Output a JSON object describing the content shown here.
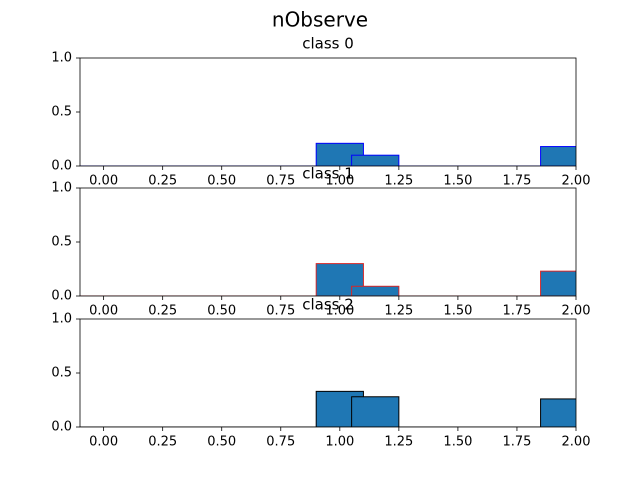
{
  "title": "nObserve",
  "chart_data": [
    {
      "type": "bar",
      "title": "class 0",
      "x": [
        0.9,
        1.05,
        1.85
      ],
      "width": 0.2,
      "values": [
        0.21,
        0.1,
        0.18
      ],
      "color": "#1f77b4",
      "edgecolor": "#0000ff",
      "xlim": [
        -0.1,
        2.0
      ],
      "ylim": [
        0,
        1
      ],
      "xticks": [
        {
          "value": 0,
          "label": "0.00"
        },
        {
          "value": 0.25,
          "label": "0.25"
        },
        {
          "value": 0.5,
          "label": "0.50"
        },
        {
          "value": 0.75,
          "label": "0.75"
        },
        {
          "value": 1,
          "label": "1.00"
        },
        {
          "value": 1.25,
          "label": "1.25"
        },
        {
          "value": 1.5,
          "label": "1.50"
        },
        {
          "value": 1.75,
          "label": "1.75"
        },
        {
          "value": 2,
          "label": "2.00"
        }
      ],
      "yticks": [
        {
          "value": 0,
          "label": "0.0"
        },
        {
          "value": 0.5,
          "label": "0.5"
        },
        {
          "value": 1,
          "label": "1.0"
        }
      ]
    },
    {
      "type": "bar",
      "title": "class 1",
      "x": [
        0.9,
        1.05,
        1.85
      ],
      "width": 0.2,
      "values": [
        0.3,
        0.09,
        0.23
      ],
      "color": "#1f77b4",
      "edgecolor": "#d62728",
      "xlim": [
        -0.1,
        2.0
      ],
      "ylim": [
        0,
        1
      ],
      "xticks": [
        {
          "value": 0,
          "label": "0.00"
        },
        {
          "value": 0.25,
          "label": "0.25"
        },
        {
          "value": 0.5,
          "label": "0.50"
        },
        {
          "value": 0.75,
          "label": "0.75"
        },
        {
          "value": 1,
          "label": "1.00"
        },
        {
          "value": 1.25,
          "label": "1.25"
        },
        {
          "value": 1.5,
          "label": "1.50"
        },
        {
          "value": 1.75,
          "label": "1.75"
        },
        {
          "value": 2,
          "label": "2.00"
        }
      ],
      "yticks": [
        {
          "value": 0,
          "label": "0.0"
        },
        {
          "value": 0.5,
          "label": "0.5"
        },
        {
          "value": 1,
          "label": "1.0"
        }
      ]
    },
    {
      "type": "bar",
      "title": "class 2",
      "x": [
        0.9,
        1.05,
        1.85
      ],
      "width": 0.2,
      "values": [
        0.33,
        0.28,
        0.26
      ],
      "color": "#1f77b4",
      "edgecolor": "#000000",
      "xlim": [
        -0.1,
        2.0
      ],
      "ylim": [
        0,
        1
      ],
      "xticks": [
        {
          "value": 0,
          "label": "0.00"
        },
        {
          "value": 0.25,
          "label": "0.25"
        },
        {
          "value": 0.5,
          "label": "0.50"
        },
        {
          "value": 0.75,
          "label": "0.75"
        },
        {
          "value": 1,
          "label": "1.00"
        },
        {
          "value": 1.25,
          "label": "1.25"
        },
        {
          "value": 1.5,
          "label": "1.50"
        },
        {
          "value": 1.75,
          "label": "1.75"
        },
        {
          "value": 2,
          "label": "2.00"
        }
      ],
      "yticks": [
        {
          "value": 0,
          "label": "0.0"
        },
        {
          "value": 0.5,
          "label": "0.5"
        },
        {
          "value": 1,
          "label": "1.0"
        }
      ]
    }
  ]
}
